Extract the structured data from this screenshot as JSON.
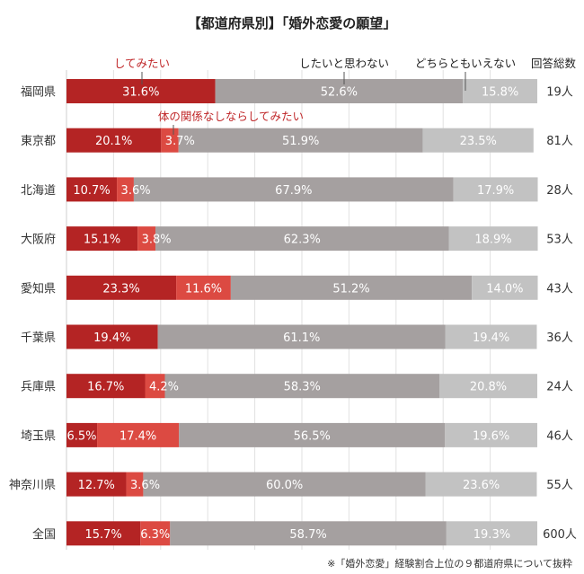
{
  "title": "【都道府県別】「婚外恋愛の願望」",
  "legend_labels": {
    "want": "してみたい",
    "platonic": "体の関係なしならしてみたい",
    "dont": "したいと思わない",
    "neither": "どちらともいえない",
    "total": "回答総数"
  },
  "note": "※「婚外恋愛」経験割合上位の９都道府県について抜粋",
  "chart_data": {
    "type": "bar",
    "orientation": "horizontal",
    "stacked": true,
    "unit": "%",
    "xlim": [
      0,
      100
    ],
    "categories": [
      "福岡県",
      "東京都",
      "北海道",
      "大阪府",
      "愛知県",
      "千葉県",
      "兵庫県",
      "埼玉県",
      "神奈川県",
      "全国"
    ],
    "series": [
      {
        "name": "してみたい",
        "color": "#b42424",
        "values": [
          31.6,
          20.1,
          10.7,
          15.1,
          23.3,
          19.4,
          16.7,
          6.5,
          12.7,
          15.7
        ]
      },
      {
        "name": "体の関係なしならしてみたい",
        "color": "#dc4a42",
        "values": [
          0,
          3.7,
          3.6,
          3.8,
          11.6,
          0,
          4.2,
          17.4,
          3.6,
          6.3
        ]
      },
      {
        "name": "したいと思わない",
        "color": "#a5a0a0",
        "values": [
          52.6,
          51.9,
          67.9,
          62.3,
          51.2,
          61.1,
          58.3,
          56.5,
          60.0,
          58.7
        ]
      },
      {
        "name": "どちらともいえない",
        "color": "#c2c2c2",
        "values": [
          15.8,
          23.5,
          17.9,
          18.9,
          14.0,
          19.4,
          20.8,
          19.6,
          23.6,
          19.3
        ]
      }
    ],
    "value_labels": [
      [
        "31.6%",
        "",
        "52.6%",
        "15.8%"
      ],
      [
        "20.1%",
        "3.7%",
        "51.9%",
        "23.5%"
      ],
      [
        "10.7%",
        "3.6%",
        "67.9%",
        "17.9%"
      ],
      [
        "15.1%",
        "3.8%",
        "62.3%",
        "18.9%"
      ],
      [
        "23.3%",
        "11.6%",
        "51.2%",
        "14.0%"
      ],
      [
        "19.4%",
        "",
        "61.1%",
        "19.4%"
      ],
      [
        "16.7%",
        "4.2%",
        "58.3%",
        "20.8%"
      ],
      [
        "6.5%",
        "17.4%",
        "56.5%",
        "19.6%"
      ],
      [
        "12.7%",
        "3.6%",
        "60.0%",
        "23.6%"
      ],
      [
        "15.7%",
        "6.3%",
        "58.7%",
        "19.3%"
      ]
    ],
    "totals": [
      "19人",
      "81人",
      "28人",
      "53人",
      "43人",
      "36人",
      "24人",
      "46人",
      "55人",
      "600人"
    ]
  }
}
